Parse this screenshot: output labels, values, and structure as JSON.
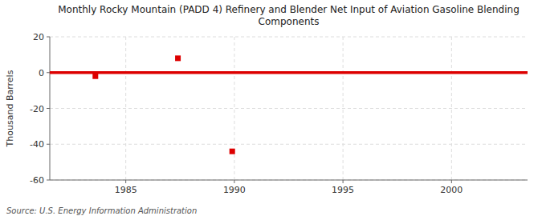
{
  "chart_data": {
    "type": "line",
    "title": "Monthly Rocky Mountain (PADD 4) Refinery and Blender Net Input of Aviation Gasoline Blending\nComponents",
    "ylabel": "Thousand Barrels",
    "source": "Source: U.S. Energy Information Administration",
    "xlim": [
      1981.5,
      2003.5
    ],
    "ylim": [
      -60,
      20
    ],
    "xticks": [
      1985,
      1990,
      1995,
      2000
    ],
    "yticks": [
      -60,
      -40,
      -20,
      0,
      20
    ],
    "grid": true,
    "series": [
      {
        "type": "line",
        "color": "#DD0000",
        "x": [
          1981.5,
          2003.5
        ],
        "values": [
          0,
          0
        ]
      },
      {
        "type": "scatter",
        "marker": "square",
        "color": "#DD0000",
        "x": [
          1983.6,
          1987.4,
          1989.9
        ],
        "values": [
          -2,
          8,
          -44
        ]
      }
    ]
  }
}
